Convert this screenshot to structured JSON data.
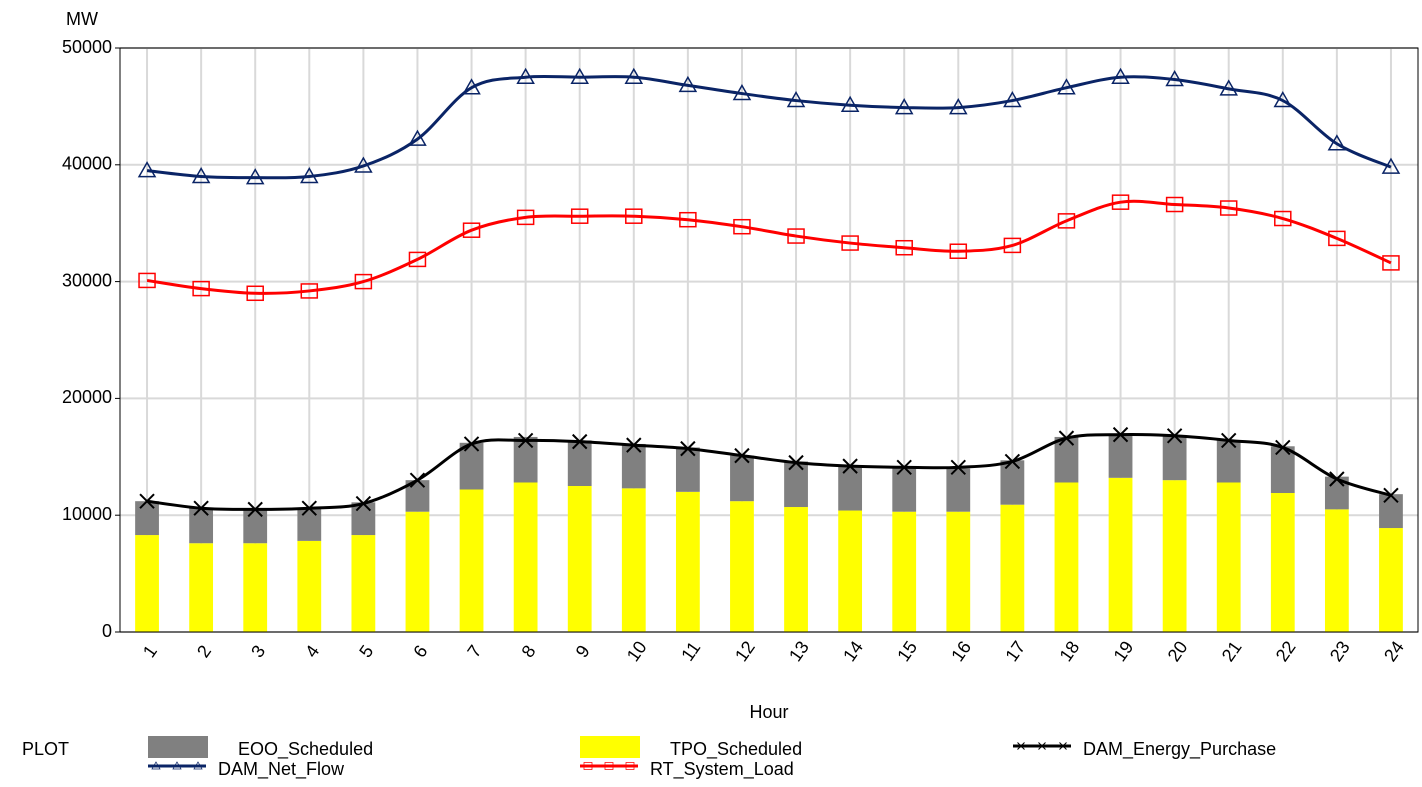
{
  "chart_data": {
    "type": "bar",
    "y_label": "MW",
    "x_label": "Hour",
    "legend_title": "PLOT",
    "categories": [
      "1",
      "2",
      "3",
      "4",
      "5",
      "6",
      "7",
      "8",
      "9",
      "10",
      "11",
      "12",
      "13",
      "14",
      "15",
      "16",
      "17",
      "18",
      "19",
      "20",
      "21",
      "22",
      "23",
      "24"
    ],
    "ylim": [
      0,
      50000
    ],
    "yticks": [
      0,
      10000,
      20000,
      30000,
      40000,
      50000
    ],
    "grid": true,
    "series": [
      {
        "name": "EOO_Scheduled",
        "type": "bar",
        "color": "#808080",
        "values": [
          2900,
          3000,
          3000,
          2800,
          2800,
          2700,
          4000,
          3900,
          3900,
          3800,
          3800,
          3900,
          3900,
          3800,
          3700,
          3700,
          3800,
          3900,
          3800,
          3800,
          3600,
          4000,
          2800,
          2900
        ]
      },
      {
        "name": "TPO_Scheduled",
        "type": "bar",
        "color": "#ffff00",
        "values": [
          8300,
          7600,
          7600,
          7800,
          8300,
          10300,
          12200,
          12800,
          12500,
          12300,
          12000,
          11200,
          10700,
          10400,
          10300,
          10300,
          10900,
          12800,
          13200,
          13000,
          12800,
          11900,
          10500,
          8900
        ]
      },
      {
        "name": "DAM_Energy_Purchase",
        "type": "line",
        "marker": "cross",
        "color": "#000000",
        "values": [
          11200,
          10600,
          10500,
          10600,
          11000,
          13000,
          16100,
          16400,
          16300,
          16000,
          15700,
          15100,
          14500,
          14200,
          14100,
          14100,
          14600,
          16600,
          16900,
          16800,
          16400,
          15800,
          13100,
          11700
        ]
      },
      {
        "name": "DAM_Net_Flow",
        "type": "line",
        "marker": "triangle",
        "color": "#0a2466",
        "values": [
          39500,
          39000,
          38900,
          39000,
          39900,
          42200,
          46600,
          47500,
          47500,
          47500,
          46800,
          46100,
          45500,
          45100,
          44900,
          44900,
          45500,
          46600,
          47500,
          47300,
          46500,
          45500,
          41800,
          39800
        ]
      },
      {
        "name": "RT_System_Load",
        "type": "line",
        "marker": "square",
        "color": "#ff0000",
        "values": [
          30100,
          29400,
          29000,
          29200,
          30000,
          31900,
          34400,
          35500,
          35600,
          35600,
          35300,
          34700,
          33900,
          33300,
          32900,
          32600,
          33100,
          35200,
          36800,
          36600,
          36300,
          35400,
          33700,
          31600
        ]
      }
    ]
  }
}
